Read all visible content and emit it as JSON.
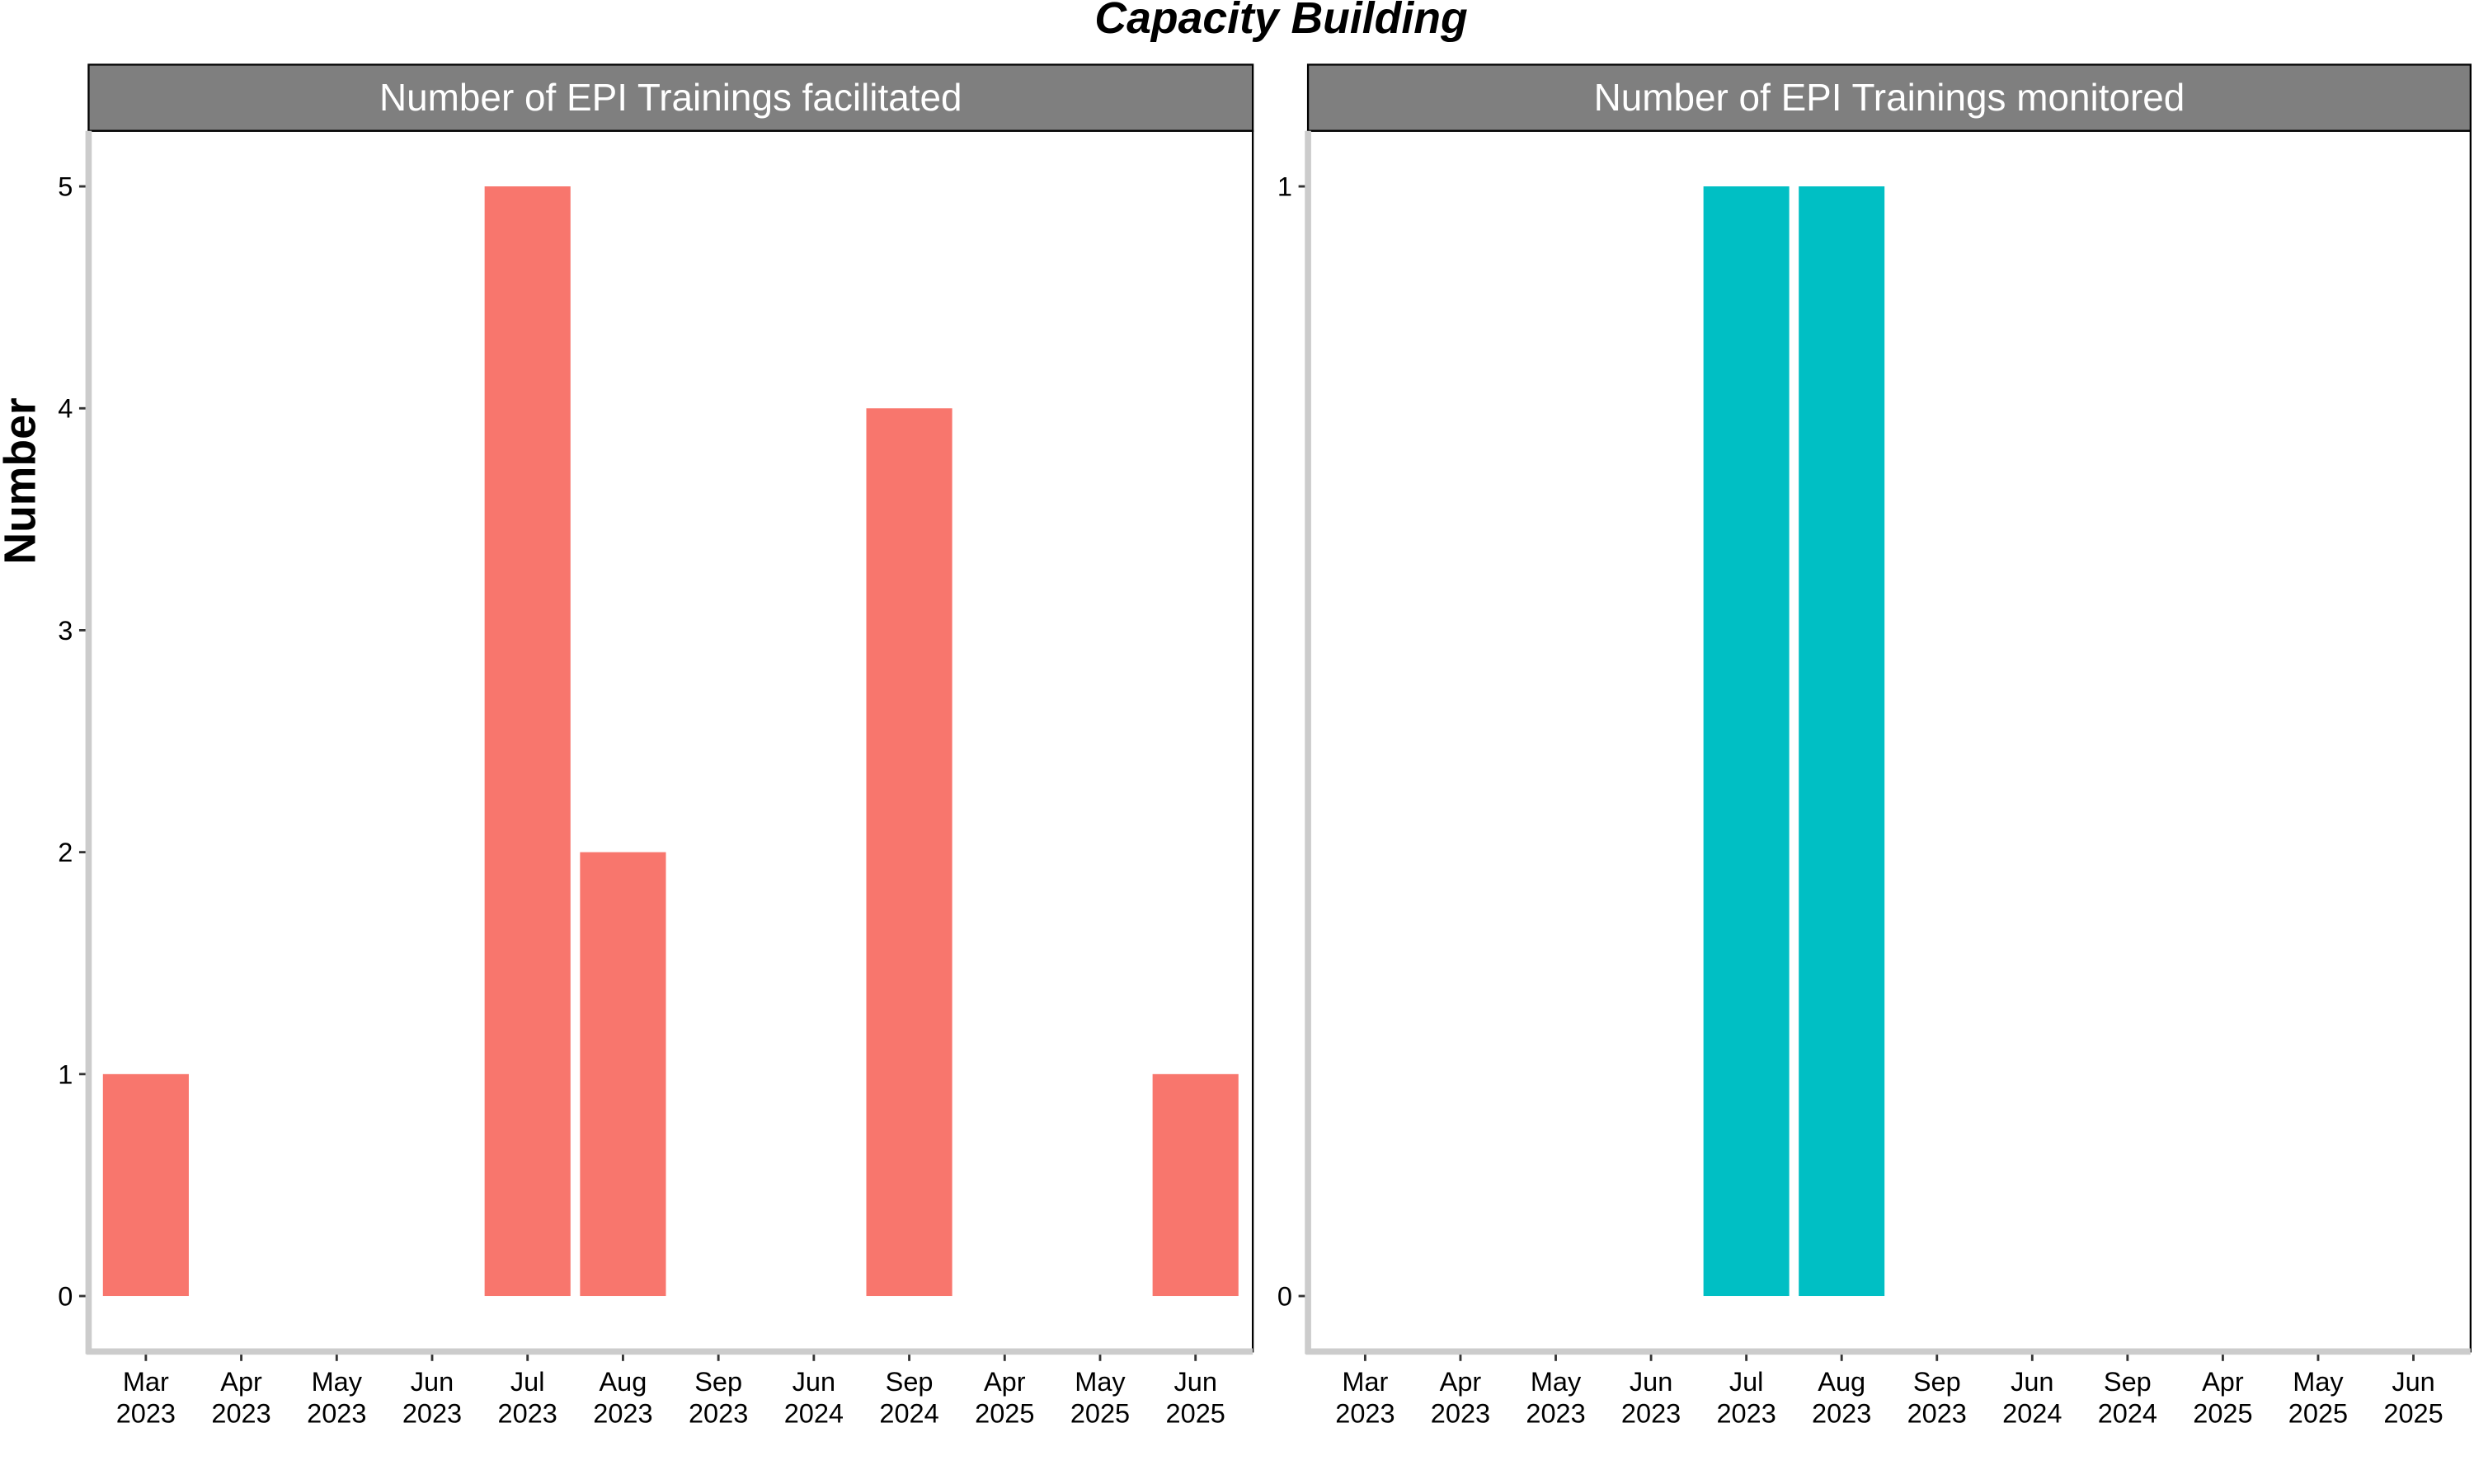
{
  "title": "Capacity Building",
  "y_label": "Number",
  "chart_data": [
    {
      "type": "bar",
      "title": "Number of EPI Trainings facilitated",
      "categories": [
        "Mar 2023",
        "Apr 2023",
        "May 2023",
        "Jun 2023",
        "Jul 2023",
        "Aug 2023",
        "Sep 2023",
        "Jun 2024",
        "Sep 2024",
        "Apr 2025",
        "May 2025",
        "Jun 2025"
      ],
      "values": [
        1,
        0,
        0,
        0,
        5,
        2,
        0,
        0,
        4,
        0,
        0,
        1
      ],
      "color": "#F8766D",
      "ylim": [
        -0.25,
        5.25
      ],
      "yticks": [
        0,
        1,
        2,
        3,
        4,
        5
      ]
    },
    {
      "type": "bar",
      "title": "Number of EPI Trainings monitored",
      "categories": [
        "Mar 2023",
        "Apr 2023",
        "May 2023",
        "Jun 2023",
        "Jul 2023",
        "Aug 2023",
        "Sep 2023",
        "Jun 2024",
        "Sep 2024",
        "Apr 2025",
        "May 2025",
        "Jun 2025"
      ],
      "values": [
        0,
        0,
        0,
        0,
        1,
        1,
        0,
        0,
        0,
        0,
        0,
        0
      ],
      "color": "#00BFC4",
      "ylim": [
        -0.05,
        1.05
      ],
      "yticks": [
        0,
        1
      ]
    }
  ]
}
